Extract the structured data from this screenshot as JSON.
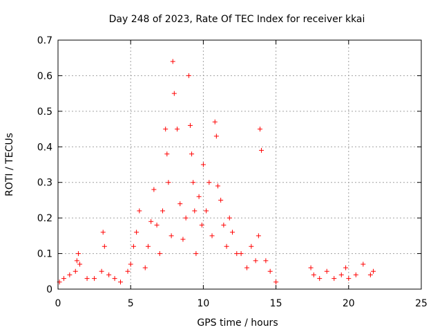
{
  "chart_data": {
    "type": "scatter",
    "title": "Day 248 of 2023, Rate Of TEC Index for receiver kkai",
    "xlabel": "GPS time / hours",
    "ylabel": "ROTI / TECUs",
    "xlim": [
      0,
      25
    ],
    "ylim": [
      0,
      0.7
    ],
    "xticks": [
      0,
      5,
      10,
      15,
      20,
      25
    ],
    "yticks": [
      0,
      0.1,
      0.2,
      0.3,
      0.4,
      0.5,
      0.6,
      0.7
    ],
    "xtick_labels": [
      "0",
      "5",
      "10",
      "15",
      "20",
      "25"
    ],
    "ytick_labels": [
      "0",
      "0.1",
      "0.2",
      "0.3",
      "0.4",
      "0.5",
      "0.6",
      "0.7"
    ],
    "grid": true,
    "marker": "plus",
    "colors": {
      "series": "#ff0000",
      "grid": "#a0a0a0",
      "frame": "#000000"
    },
    "series": [
      {
        "name": "ROTI",
        "x": [
          0.1,
          0.4,
          0.8,
          1.2,
          1.3,
          1.4,
          1.5,
          2.0,
          2.5,
          3.0,
          3.1,
          3.2,
          3.5,
          3.9,
          4.3,
          4.8,
          5.0,
          5.2,
          5.4,
          5.6,
          6.0,
          6.2,
          6.4,
          6.6,
          6.8,
          7.0,
          7.2,
          7.4,
          7.5,
          7.6,
          7.8,
          7.9,
          8.0,
          8.2,
          8.4,
          8.6,
          8.8,
          9.0,
          9.1,
          9.2,
          9.3,
          9.4,
          9.5,
          9.7,
          9.9,
          10.0,
          10.2,
          10.4,
          10.6,
          10.8,
          10.9,
          11.0,
          11.2,
          11.4,
          11.6,
          11.8,
          12.0,
          12.3,
          12.6,
          13.0,
          13.3,
          13.6,
          13.8,
          13.9,
          14.0,
          14.3,
          14.6,
          15.0,
          17.4,
          17.6,
          18.0,
          18.5,
          19.0,
          19.5,
          19.8,
          20.0,
          20.5,
          21.0,
          21.5,
          21.7
        ],
        "y": [
          0.02,
          0.03,
          0.04,
          0.05,
          0.08,
          0.1,
          0.07,
          0.03,
          0.03,
          0.05,
          0.16,
          0.12,
          0.04,
          0.03,
          0.02,
          0.05,
          0.07,
          0.12,
          0.16,
          0.22,
          0.06,
          0.12,
          0.19,
          0.28,
          0.18,
          0.1,
          0.22,
          0.45,
          0.38,
          0.3,
          0.15,
          0.64,
          0.55,
          0.45,
          0.24,
          0.14,
          0.2,
          0.6,
          0.46,
          0.38,
          0.3,
          0.22,
          0.1,
          0.26,
          0.18,
          0.35,
          0.22,
          0.3,
          0.15,
          0.47,
          0.43,
          0.29,
          0.25,
          0.18,
          0.12,
          0.2,
          0.16,
          0.1,
          0.1,
          0.06,
          0.12,
          0.08,
          0.15,
          0.45,
          0.39,
          0.08,
          0.05,
          0.02,
          0.06,
          0.04,
          0.03,
          0.05,
          0.03,
          0.04,
          0.06,
          0.03,
          0.04,
          0.07,
          0.04,
          0.05
        ],
        "color": "#ff0000"
      }
    ]
  }
}
